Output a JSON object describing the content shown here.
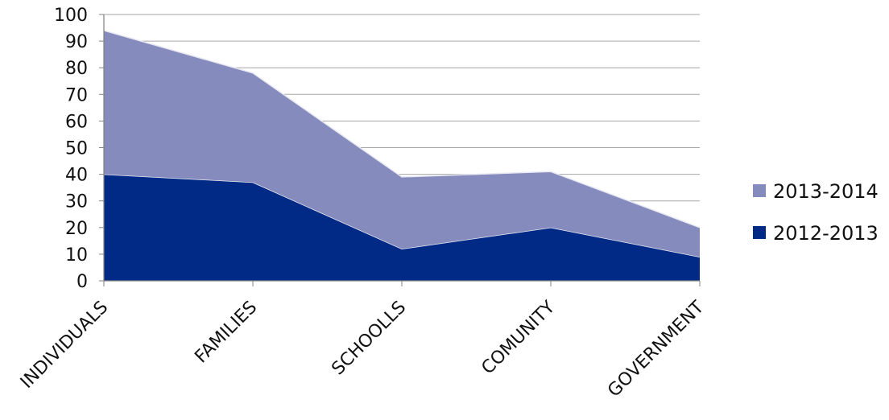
{
  "chart_data": {
    "type": "area",
    "stacked": true,
    "categories": [
      "INDIVIDUALS",
      "FAMILIES",
      "SCHOOLLS",
      "COMUNITY",
      "GOVERNMENT"
    ],
    "series": [
      {
        "name": "2012-2013",
        "values": [
          40,
          37,
          12,
          20,
          9
        ],
        "color": "#002a86"
      },
      {
        "name": "2013-2014",
        "values": [
          54,
          41,
          27,
          21,
          11
        ],
        "color": "#858bbd"
      }
    ],
    "yticks": [
      0,
      10,
      20,
      30,
      40,
      50,
      60,
      70,
      80,
      90,
      100
    ],
    "ylim": [
      0,
      100
    ],
    "grid": true,
    "legend_position": "right",
    "legend_order": [
      "2013-2014",
      "2012-2013"
    ],
    "title": "",
    "xlabel": "",
    "ylabel": ""
  }
}
